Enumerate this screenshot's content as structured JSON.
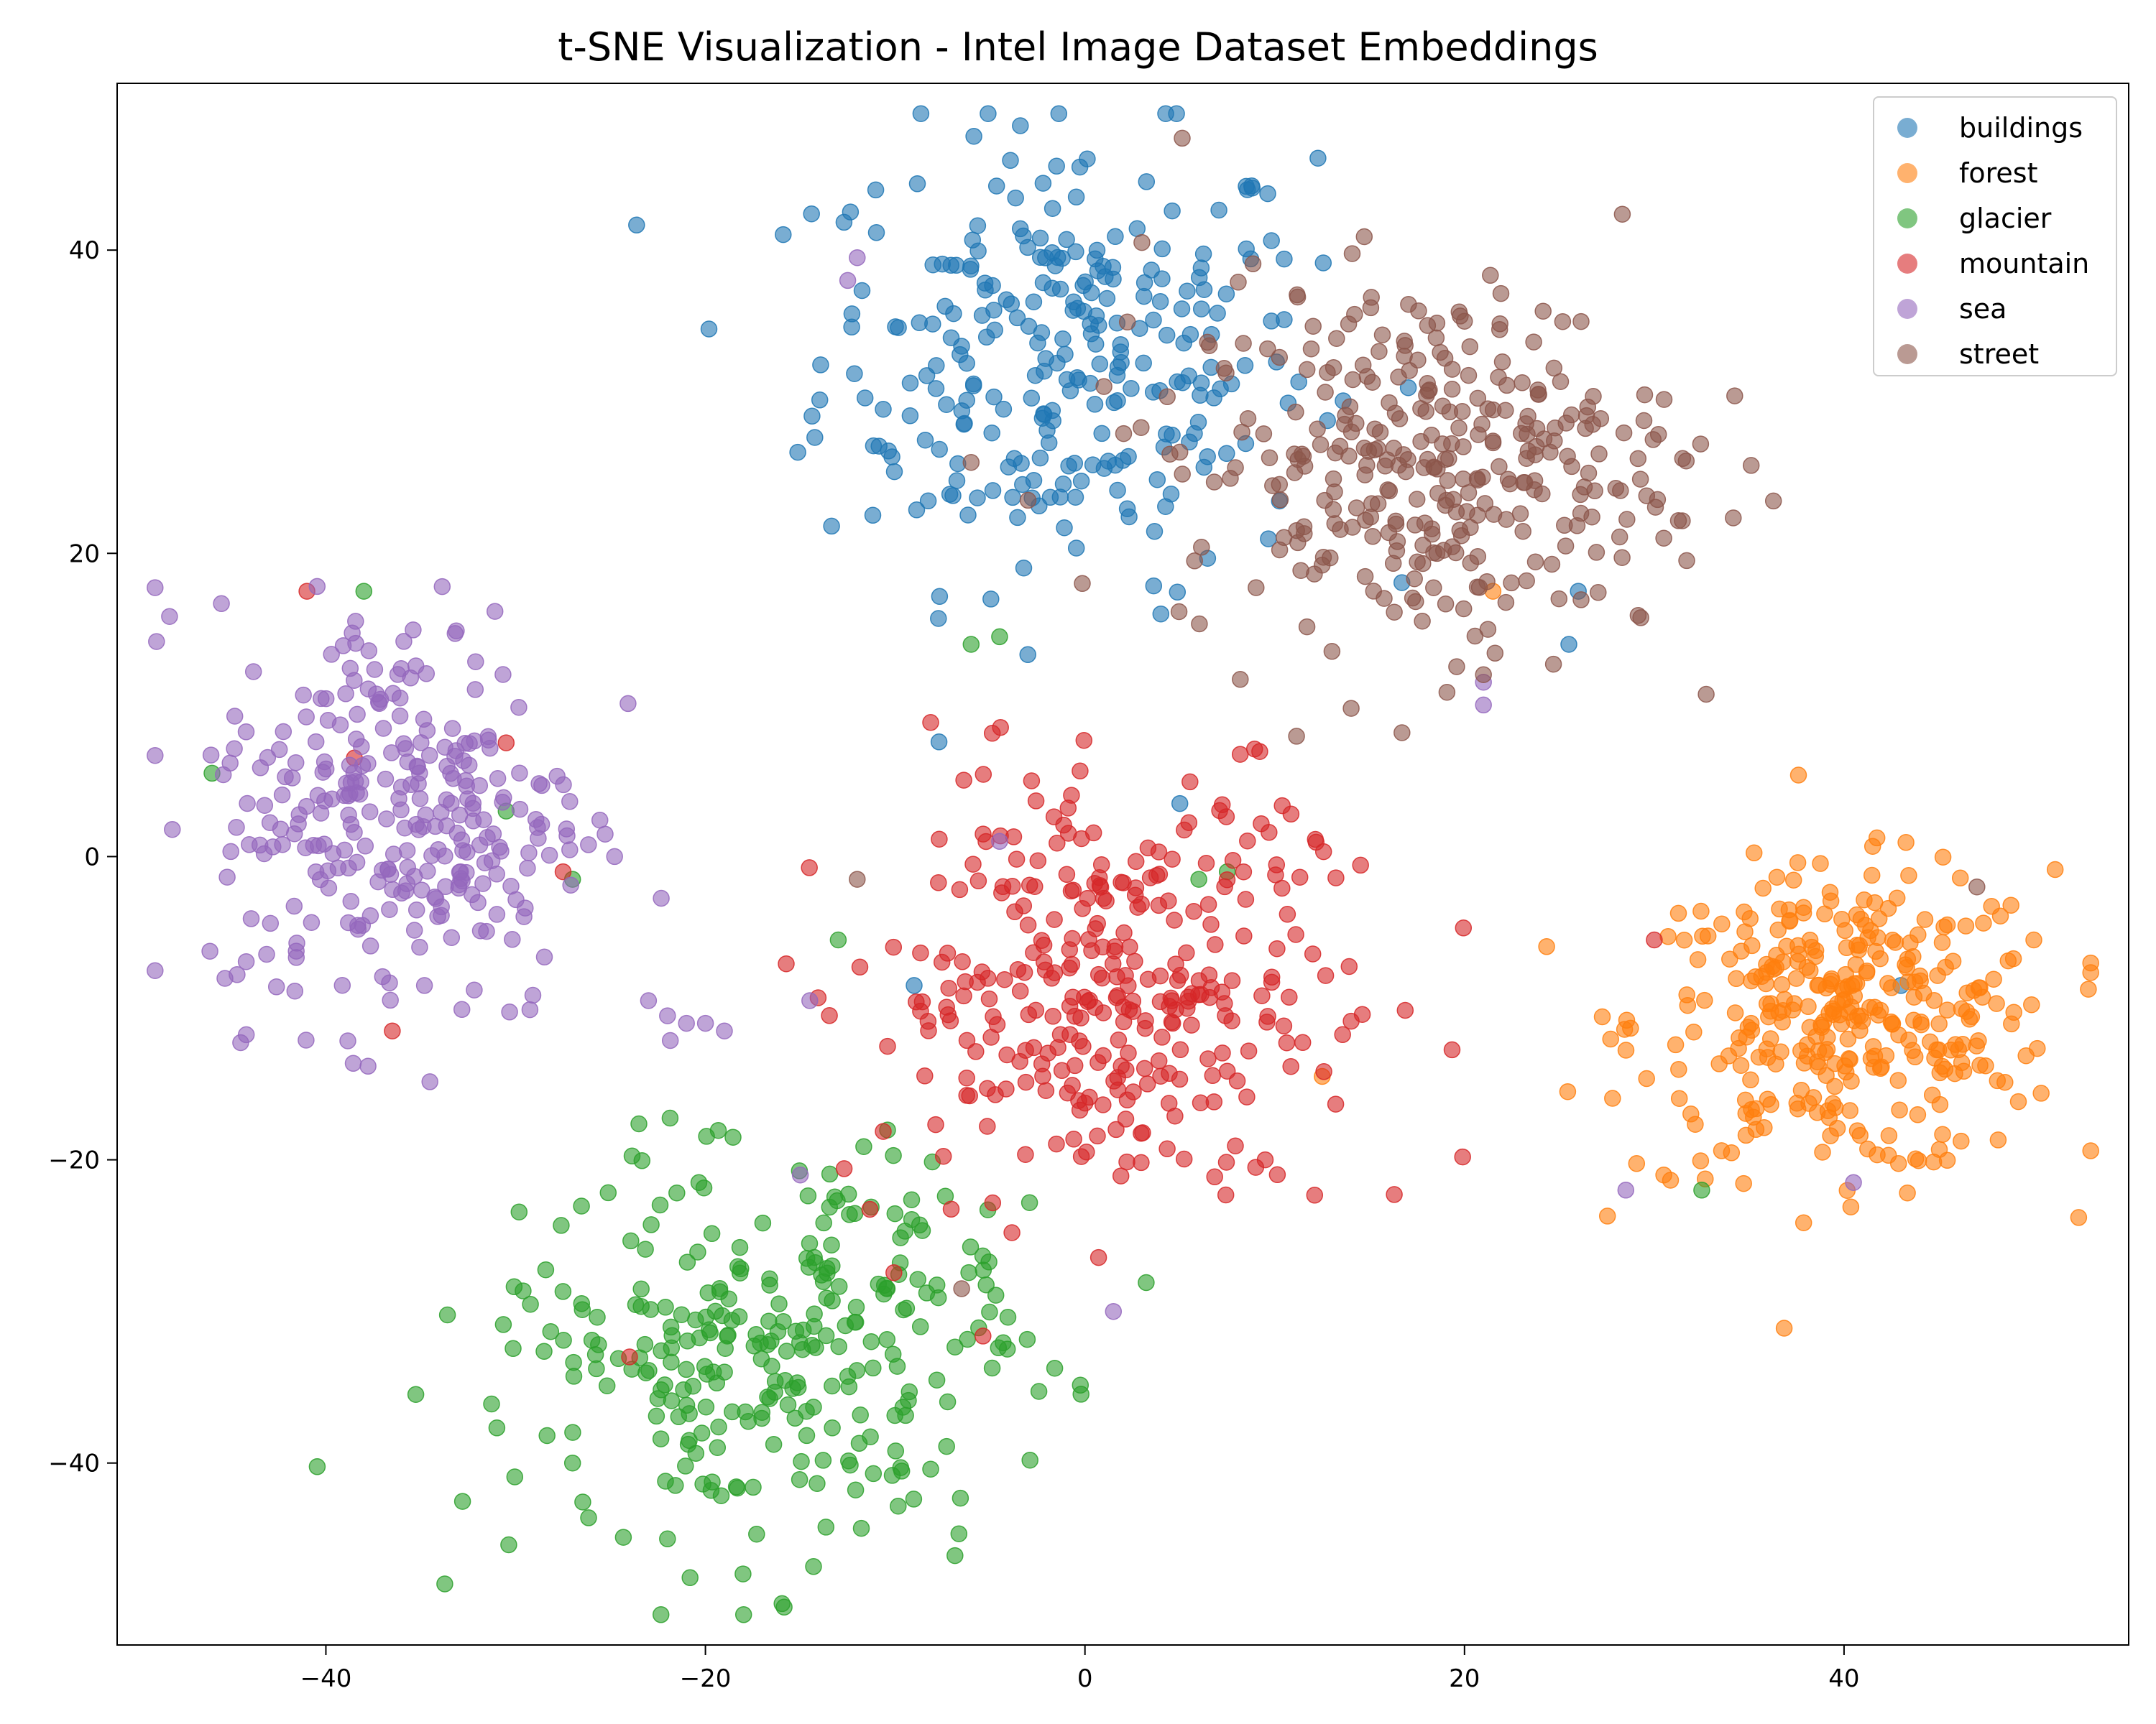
{
  "chart_data": {
    "type": "scatter",
    "title": "t-SNE Visualization - Intel Image Dataset Embeddings",
    "xlabel": "",
    "ylabel": "",
    "xlim": [
      -51,
      55
    ],
    "ylim": [
      -52,
      51
    ],
    "xticks": [
      -40,
      -20,
      0,
      20,
      40
    ],
    "yticks": [
      -40,
      -20,
      0,
      20,
      40
    ],
    "xtick_labels": [
      "−40",
      "−20",
      "0",
      "20",
      "40"
    ],
    "ytick_labels": [
      "−40",
      "−20",
      "0",
      "20",
      "40"
    ],
    "grid": false,
    "legend": "top-right",
    "series": [
      {
        "name": "buildings",
        "color": "#1f77b4",
        "center": [
          -1,
          33
        ],
        "spread": [
          6.5,
          7.5
        ],
        "count": 280,
        "extra_points": [
          [
            5,
            3.5
          ],
          [
            25.5,
            14
          ],
          [
            -9,
            -8.5
          ],
          [
            43,
            -8.5
          ],
          [
            4,
            16
          ],
          [
            26,
            17.5
          ]
        ]
      },
      {
        "name": "forest",
        "color": "#ff7f0e",
        "center": [
          40,
          -11
        ],
        "spread": [
          5.5,
          5
        ],
        "count": 340,
        "extra_points": [
          [
            21.5,
            17.5
          ],
          [
            12.5,
            -14.5
          ],
          [
            50,
            -5.5
          ],
          [
            30.5,
            -21
          ]
        ]
      },
      {
        "name": "glacier",
        "color": "#2ca02c",
        "center": [
          -16,
          -33
        ],
        "spread": [
          6.5,
          6
        ],
        "count": 300,
        "extra_points": [
          [
            -46,
            5.5
          ],
          [
            -38,
            17.5
          ],
          [
            -27,
            -1.5
          ],
          [
            -30.5,
            3
          ],
          [
            -6,
            14
          ],
          [
            -4.5,
            14.5
          ],
          [
            -13,
            -5.5
          ],
          [
            6,
            -1.5
          ],
          [
            7.5,
            -1
          ],
          [
            -27,
            -40
          ],
          [
            -22,
            -45
          ],
          [
            32.5,
            -22
          ]
        ]
      },
      {
        "name": "mountain",
        "color": "#d62728",
        "center": [
          1,
          -9
        ],
        "spread": [
          6,
          7
        ],
        "count": 330,
        "extra_points": [
          [
            -41,
            17.5
          ],
          [
            -38.5,
            6.5
          ],
          [
            -36.5,
            -11.5
          ],
          [
            -30.5,
            7.5
          ],
          [
            -27.5,
            -1
          ],
          [
            -24,
            -33
          ],
          [
            9,
            -20.5
          ],
          [
            9.5,
            -20
          ],
          [
            30,
            -5.5
          ]
        ]
      },
      {
        "name": "sea",
        "color": "#9467bd",
        "center": [
          -36,
          3
        ],
        "spread": [
          5,
          7
        ],
        "count": 300,
        "extra_points": [
          [
            -23,
            -9.5
          ],
          [
            -22,
            -10.5
          ],
          [
            -21,
            -11
          ],
          [
            -20,
            -11
          ],
          [
            -19,
            -11.5
          ],
          [
            -12,
            39.5
          ],
          [
            -12.5,
            38
          ],
          [
            21,
            10
          ],
          [
            21,
            11.5
          ],
          [
            -15,
            -21
          ],
          [
            1.5,
            -30
          ],
          [
            28.5,
            -22
          ],
          [
            40.5,
            -21.5
          ],
          [
            -4.5,
            1
          ],
          [
            -14.5,
            -9.5
          ]
        ]
      },
      {
        "name": "street",
        "color": "#8c564b",
        "center": [
          18,
          26
        ],
        "spread": [
          6.5,
          6
        ],
        "count": 330,
        "extra_points": [
          [
            -6,
            26
          ],
          [
            1,
            31
          ],
          [
            3,
            40.5
          ],
          [
            -3,
            23.5
          ],
          [
            30.5,
            21
          ],
          [
            21,
            12
          ],
          [
            47,
            -2
          ],
          [
            -12,
            -1.5
          ],
          [
            -6.5,
            -28.5
          ]
        ]
      }
    ]
  }
}
